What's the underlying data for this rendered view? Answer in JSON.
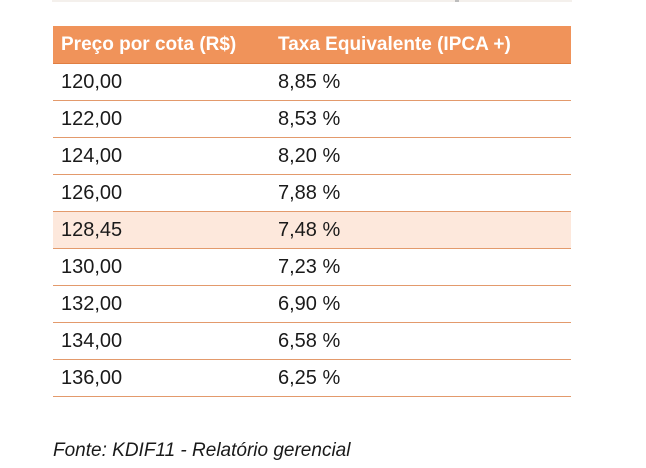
{
  "table": {
    "headers": [
      "Preço por cota (R$)",
      "Taxa Equivalente (IPCA +)"
    ],
    "rows": [
      {
        "price": "120,00",
        "rate": "8,85 %"
      },
      {
        "price": "122,00",
        "rate": "8,53 %"
      },
      {
        "price": "124,00",
        "rate": "8,20 %"
      },
      {
        "price": "126,00",
        "rate": "7,88 %"
      },
      {
        "price": "128,45",
        "rate": "7,48 %"
      },
      {
        "price": "130,00",
        "rate": "7,23 %"
      },
      {
        "price": "132,00",
        "rate": "6,90 %"
      },
      {
        "price": "134,00",
        "rate": "6,58 %"
      },
      {
        "price": "136,00",
        "rate": "6,25 %"
      }
    ],
    "highlighted_row": 4
  },
  "source_note": "Fonte:  KDIF11 - Relatório gerencial",
  "colors": {
    "header_bg": "#f0935a",
    "header_text": "#ffffff",
    "highlight_bg": "#fde8dc",
    "row_divider": "#e39a6c"
  }
}
